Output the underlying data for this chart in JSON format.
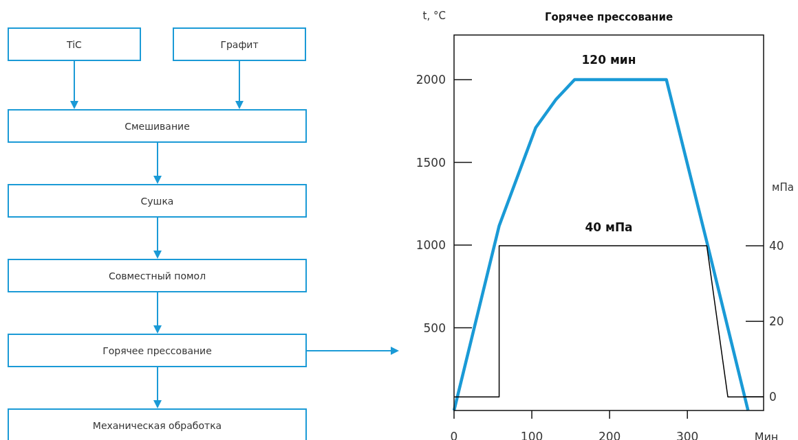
{
  "chart_data": [
    {
      "type": "other",
      "annotations": [
        "TiC",
        "Графит",
        "Смешивание",
        "Сушка",
        "Совместный помол",
        "Горячее прессование",
        "Механическая обработка"
      ]
    },
    {
      "type": "line",
      "title": "Горячее прессование",
      "xlabel": "Мин",
      "ylabel": "t, °C",
      "y2label": "мПа",
      "xlim": [
        0,
        398
      ],
      "xticks": [
        0,
        100,
        200,
        300
      ],
      "ylim": [
        0,
        2270
      ],
      "yticks": [
        500,
        1000,
        1500,
        2000
      ],
      "y2lim": [
        -3.6,
        95.8
      ],
      "y2ticks": [
        0,
        20,
        40
      ],
      "series": [
        {
          "color": "#1a9ad6",
          "x": [
            0,
            58,
            105,
            131,
            155,
            273,
            326,
            378
          ],
          "values": [
            0,
            1116,
            1710,
            1880,
            2000,
            2000,
            1000,
            0
          ]
        },
        {
          "color": "#000000",
          "axis": "y2",
          "x": [
            0,
            58,
            58,
            325,
            352,
            398
          ],
          "values": [
            0,
            0,
            40,
            40,
            0,
            0
          ]
        }
      ],
      "annotations": [
        "120 мин",
        "40 мПа"
      ],
      "grid": false,
      "marker": "none",
      "line_style": "solid"
    }
  ]
}
